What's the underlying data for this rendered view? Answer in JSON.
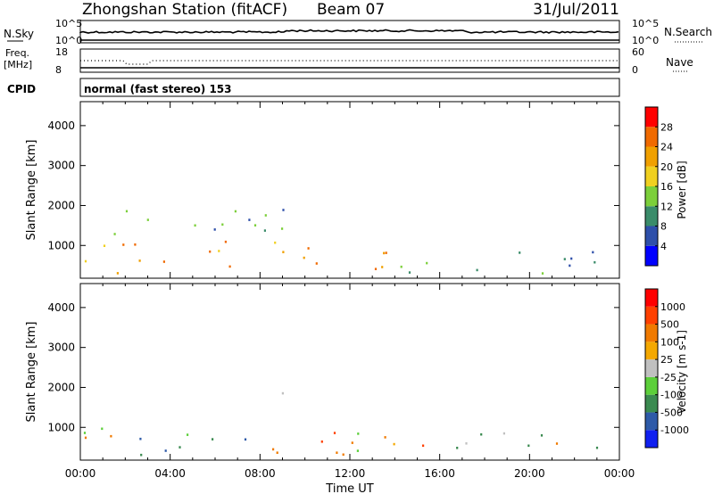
{
  "header": {
    "station": "Zhongshan Station (fitACF)",
    "beam": "Beam 07",
    "date": "31/Jul/2011"
  },
  "strip_panels": {
    "nsky": {
      "label": "N.Sky",
      "ticks": [
        "10^5",
        "10^0"
      ],
      "right_label": "N.Search",
      "right_ticks": [
        "10^5",
        "10^0"
      ]
    },
    "freq": {
      "label": "Freq.",
      "unit": "[MHz]",
      "ticks": [
        "18",
        "8"
      ],
      "right_label": "Nave",
      "right_ticks": [
        "60",
        "0"
      ]
    },
    "cpid": {
      "label": "CPID",
      "value": "normal (fast stereo) 153"
    }
  },
  "axes": {
    "xlabel": "Time UT",
    "xticks": [
      "00:00",
      "04:00",
      "08:00",
      "12:00",
      "16:00",
      "20:00",
      "00:00"
    ],
    "ylabel": "Slant Range [km]",
    "yticks": [
      "1000",
      "2000",
      "3000",
      "4000"
    ]
  },
  "colors": {
    "power": [
      "#0000ff",
      "#2e4faa",
      "#3a8c6a",
      "#7ccf3a",
      "#f0d020",
      "#f0a000",
      "#f06a00",
      "#ff0000"
    ],
    "velocity": [
      "#ff0000",
      "#ff4000",
      "#f07a00",
      "#f4a800",
      "#c0c0c0",
      "#5ccf3a",
      "#3a8a50",
      "#2e5aa8",
      "#1020f0"
    ],
    "frame": "#000000"
  },
  "chart_data": [
    {
      "type": "heatmap",
      "title": "Power [dB]",
      "xlabel": "Time UT",
      "ylabel": "Slant Range [km]",
      "xlim": [
        0,
        24
      ],
      "ylim": [
        180,
        4600
      ],
      "colorbar": {
        "label": "Power [dB]",
        "ticks": [
          "4",
          "8",
          "12",
          "16",
          "20",
          "24",
          "28"
        ],
        "range": [
          0,
          32
        ]
      },
      "regions": [
        {
          "t": [
            0,
            6
          ],
          "r": [
            300,
            1100
          ],
          "v": 21
        },
        {
          "t": [
            6,
            11
          ],
          "r": [
            300,
            1200
          ],
          "v": 22
        },
        {
          "t": [
            11,
            14
          ],
          "r": [
            300,
            1000
          ],
          "v": 24
        },
        {
          "t": [
            14,
            18
          ],
          "r": [
            300,
            900
          ],
          "v": 14
        },
        {
          "t": [
            18,
            24
          ],
          "r": [
            300,
            1000
          ],
          "v": 9
        },
        {
          "t": [
            1,
            11
          ],
          "r": [
            1200,
            1900
          ],
          "v": 11
        },
        {
          "t": [
            8.5,
            9.5
          ],
          "r": [
            1600,
            1950
          ],
          "v": 6
        }
      ]
    },
    {
      "type": "heatmap",
      "title": "Velocity [m s^-1]",
      "xlabel": "Time UT",
      "ylabel": "Slant Range [km]",
      "xlim": [
        0,
        24
      ],
      "ylim": [
        180,
        4600
      ],
      "colorbar": {
        "label": "Velocity [m s-1]",
        "ticks": [
          "1000",
          "500",
          "100",
          "25",
          "-25",
          "-100",
          "-500",
          "-1000"
        ],
        "range": [
          -1200,
          1200
        ]
      },
      "regions": [
        {
          "t": [
            0,
            6
          ],
          "r": [
            300,
            1000
          ],
          "v": 160
        },
        {
          "t": [
            3,
            8
          ],
          "r": [
            400,
            900
          ],
          "v": 700
        },
        {
          "t": [
            8,
            12
          ],
          "r": [
            300,
            1200
          ],
          "v": -300
        },
        {
          "t": [
            12,
            16
          ],
          "r": [
            400,
            1300
          ],
          "v": -250
        },
        {
          "t": [
            16,
            24
          ],
          "r": [
            300,
            900
          ],
          "v": 150
        },
        {
          "t": [
            8.5,
            9.5
          ],
          "r": [
            1600,
            1950
          ],
          "v": 0
        }
      ]
    }
  ]
}
